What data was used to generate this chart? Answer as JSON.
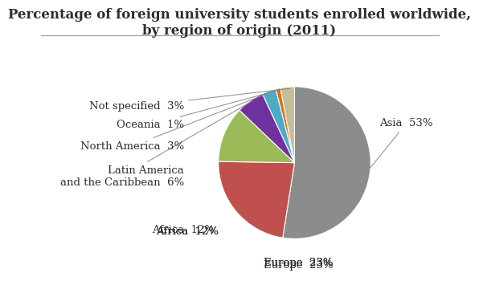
{
  "title": "Percentage of foreign university students enrolled worldwide,\nby region of origin (2011)",
  "slices": [
    {
      "label": "Asia",
      "pct": 53,
      "color": "#8c8c8c"
    },
    {
      "label": "Europe",
      "pct": 23,
      "color": "#c0504d"
    },
    {
      "label": "Africa",
      "pct": 12,
      "color": "#9bbb59"
    },
    {
      "label": "Latin America\nand the Caribbean",
      "pct": 6,
      "color": "#7030a0"
    },
    {
      "label": "North America",
      "pct": 3,
      "color": "#4bacc6"
    },
    {
      "label": "Oceania",
      "pct": 1,
      "color": "#e36c09"
    },
    {
      "label": "Not specified",
      "pct": 3,
      "color": "#c4bd97"
    }
  ],
  "background_color": "#ffffff",
  "title_fontsize": 12,
  "label_fontsize": 9.5,
  "title_color": "#2d2d2d",
  "line_color": "#999999"
}
